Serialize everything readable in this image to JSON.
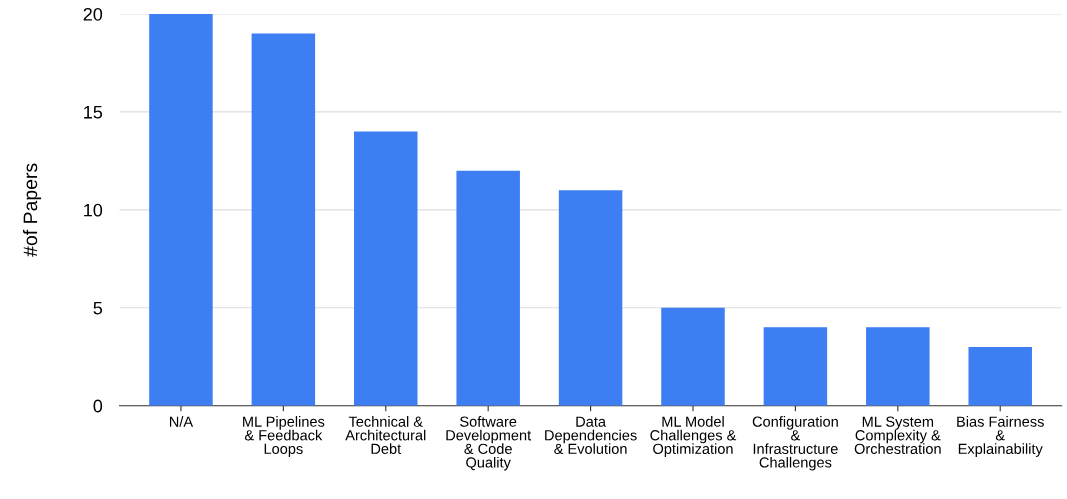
{
  "chart_data": {
    "type": "bar",
    "ylabel": "#of Papers",
    "categories": [
      "N/A",
      "ML Pipelines\n& Feedback\nLoops",
      "Technical &\nArchitectural\nDebt",
      "Software\nDevelopment\n& Code\nQuality",
      "Data\nDependencies\n& Evolution",
      "ML Model\nChallenges &\nOptimization",
      "Configuration\n&\nInfrastructure\nChallenges",
      "ML System\nComplexity &\nOrchestration",
      "Bias Fairness\n&\nExplainability"
    ],
    "values": [
      20,
      19,
      14,
      12,
      11,
      5,
      4,
      4,
      3
    ],
    "color": "#3d7ef3",
    "ylim": [
      0,
      20
    ],
    "yticks": [
      0,
      5,
      10,
      15,
      20
    ],
    "grid": "y",
    "legend": false
  }
}
